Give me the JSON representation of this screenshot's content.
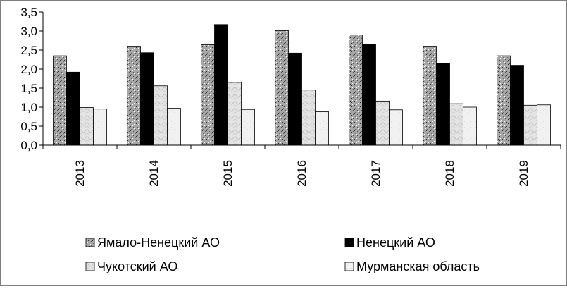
{
  "chart_data": {
    "type": "bar",
    "title": "",
    "xlabel": "",
    "ylabel": "",
    "categories": [
      "2013",
      "2014",
      "2015",
      "2016",
      "2017",
      "2018",
      "2019"
    ],
    "ylim": [
      0,
      3.5
    ],
    "yticks": [
      "0,0",
      "0,5",
      "1,0",
      "1,5",
      "2,0",
      "2,5",
      "3,0",
      "3,5"
    ],
    "ytick_values": [
      0,
      0.5,
      1.0,
      1.5,
      2.0,
      2.5,
      3.0,
      3.5
    ],
    "grid": false,
    "legend_position": "bottom",
    "series": [
      {
        "name": "Ямало-Ненецкий АО",
        "values": [
          2.35,
          2.6,
          2.64,
          3.01,
          2.9,
          2.6,
          2.35
        ],
        "pattern": "speckled"
      },
      {
        "name": "Ненецкий АО",
        "values": [
          1.92,
          2.43,
          3.17,
          2.42,
          2.65,
          2.15,
          2.1
        ],
        "pattern": "solid-black"
      },
      {
        "name": "Чукотский АО",
        "values": [
          0.99,
          1.56,
          1.65,
          1.45,
          1.16,
          1.09,
          1.05
        ],
        "pattern": "light-swirl"
      },
      {
        "name": "Мурманская область",
        "values": [
          0.95,
          0.97,
          0.94,
          0.88,
          0.93,
          1.0,
          1.06
        ],
        "pattern": "light"
      }
    ]
  }
}
